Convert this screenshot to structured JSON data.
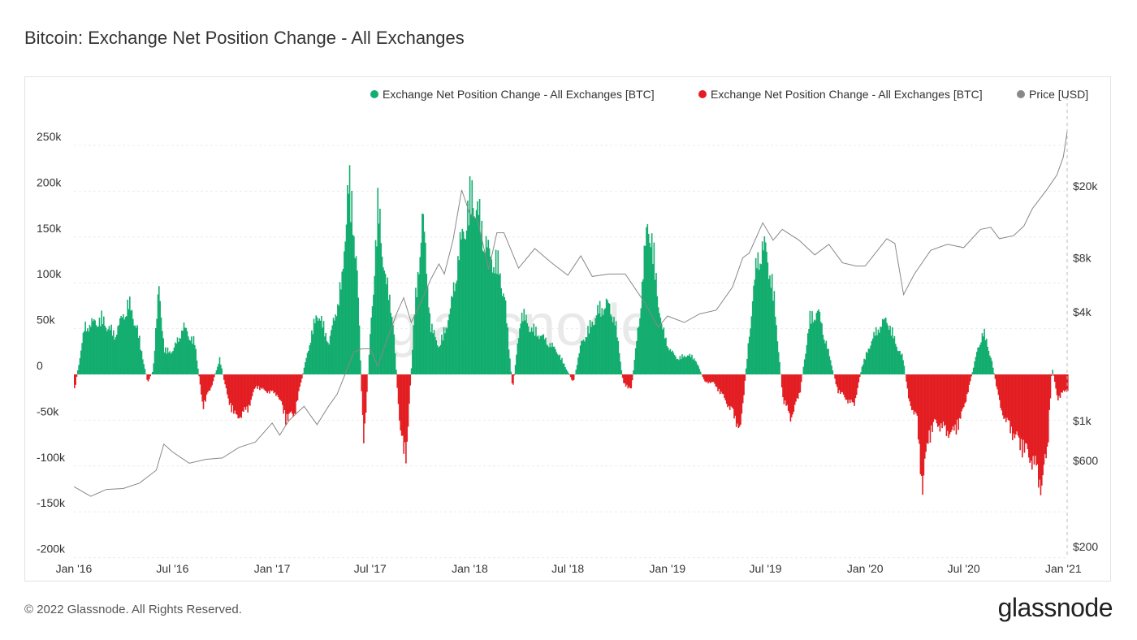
{
  "title": "Bitcoin: Exchange Net Position Change - All Exchanges",
  "footer": {
    "copyright": "© 2022 Glassnode. All Rights Reserved.",
    "logo": "glassnode"
  },
  "watermark": "glassnode",
  "colors": {
    "positive": "#13ad6f",
    "negative": "#e31e23",
    "price": "#888888",
    "grid": "#ececec"
  },
  "chart_data": {
    "type": "bar",
    "title": "Bitcoin: Exchange Net Position Change - All Exchanges",
    "legend_position": "top-right",
    "legend": [
      {
        "label": "Exchange Net Position Change - All Exchanges [BTC]",
        "color": "#13ad6f"
      },
      {
        "label": "Exchange Net Position Change - All Exchanges [BTC]",
        "color": "#e31e23"
      },
      {
        "label": "Price [USD]",
        "color": "#888888"
      }
    ],
    "x_axis": {
      "start": "2016-01-01",
      "end": "2021-01-08",
      "ticks": [
        {
          "date": "2016-01-01",
          "label": "Jan '16"
        },
        {
          "date": "2016-07-01",
          "label": "Jul '16"
        },
        {
          "date": "2017-01-01",
          "label": "Jan '17"
        },
        {
          "date": "2017-07-01",
          "label": "Jul '17"
        },
        {
          "date": "2018-01-01",
          "label": "Jan '18"
        },
        {
          "date": "2018-07-01",
          "label": "Jul '18"
        },
        {
          "date": "2019-01-01",
          "label": "Jan '19"
        },
        {
          "date": "2019-07-01",
          "label": "Jul '19"
        },
        {
          "date": "2020-01-01",
          "label": "Jan '20"
        },
        {
          "date": "2020-07-01",
          "label": "Jul '20"
        },
        {
          "date": "2021-01-01",
          "label": "Jan '21"
        }
      ]
    },
    "y_left": {
      "label": "",
      "min": -200000,
      "max": 250000,
      "scale": "linear",
      "ticks": [
        {
          "value": 250000,
          "label": "250k"
        },
        {
          "value": 200000,
          "label": "200k"
        },
        {
          "value": 150000,
          "label": "150k"
        },
        {
          "value": 100000,
          "label": "100k"
        },
        {
          "value": 50000,
          "label": "50k"
        },
        {
          "value": 0,
          "label": "0"
        },
        {
          "value": -50000,
          "label": "-50k"
        },
        {
          "value": -100000,
          "label": "-100k"
        },
        {
          "value": -150000,
          "label": "-150k"
        },
        {
          "value": -200000,
          "label": "-200k"
        }
      ]
    },
    "y_right": {
      "label": "",
      "scale": "log",
      "ticks": [
        {
          "value": 20000,
          "label": "$20k"
        },
        {
          "value": 8000,
          "label": "$8k"
        },
        {
          "value": 4000,
          "label": "$4k"
        },
        {
          "value": 1000,
          "label": "$1k"
        },
        {
          "value": 600,
          "label": "$600"
        },
        {
          "value": 200,
          "label": "$200"
        }
      ]
    },
    "grid": true,
    "net_position_change_btc": [
      [
        "2016-01-01",
        -20000
      ],
      [
        "2016-01-20",
        60000
      ],
      [
        "2016-02-20",
        70000
      ],
      [
        "2016-03-15",
        50000
      ],
      [
        "2016-04-10",
        90000
      ],
      [
        "2016-04-25",
        60000
      ],
      [
        "2016-05-15",
        -10000
      ],
      [
        "2016-05-25",
        5000
      ],
      [
        "2016-06-05",
        110000
      ],
      [
        "2016-06-15",
        30000
      ],
      [
        "2016-07-01",
        30000
      ],
      [
        "2016-07-20",
        60000
      ],
      [
        "2016-08-10",
        40000
      ],
      [
        "2016-08-25",
        -40000
      ],
      [
        "2016-09-10",
        -15000
      ],
      [
        "2016-09-25",
        20000
      ],
      [
        "2016-10-10",
        -30000
      ],
      [
        "2016-10-25",
        -55000
      ],
      [
        "2016-11-15",
        -45000
      ],
      [
        "2016-12-01",
        -15000
      ],
      [
        "2016-12-15",
        -20000
      ],
      [
        "2017-01-10",
        -25000
      ],
      [
        "2017-01-25",
        -55000
      ],
      [
        "2017-02-10",
        -50000
      ],
      [
        "2017-03-10",
        40000
      ],
      [
        "2017-03-25",
        80000
      ],
      [
        "2017-04-15",
        40000
      ],
      [
        "2017-05-10",
        120000
      ],
      [
        "2017-05-20",
        250000
      ],
      [
        "2017-06-05",
        150000
      ],
      [
        "2017-06-18",
        -95000
      ],
      [
        "2017-07-01",
        60000
      ],
      [
        "2017-07-15",
        215000
      ],
      [
        "2017-07-28",
        120000
      ],
      [
        "2017-08-10",
        80000
      ],
      [
        "2017-08-25",
        -80000
      ],
      [
        "2017-09-05",
        -100000
      ],
      [
        "2017-09-20",
        80000
      ],
      [
        "2017-10-05",
        200000
      ],
      [
        "2017-10-20",
        60000
      ],
      [
        "2017-11-05",
        35000
      ],
      [
        "2017-11-25",
        80000
      ],
      [
        "2017-12-10",
        150000
      ],
      [
        "2017-12-25",
        200000
      ],
      [
        "2018-01-05",
        230000
      ],
      [
        "2018-01-20",
        190000
      ],
      [
        "2018-02-05",
        150000
      ],
      [
        "2018-02-20",
        140000
      ],
      [
        "2018-03-05",
        100000
      ],
      [
        "2018-03-20",
        -20000
      ],
      [
        "2018-04-05",
        80000
      ],
      [
        "2018-04-20",
        60000
      ],
      [
        "2018-05-10",
        50000
      ],
      [
        "2018-05-25",
        40000
      ],
      [
        "2018-06-10",
        30000
      ],
      [
        "2018-06-25",
        10000
      ],
      [
        "2018-07-10",
        -10000
      ],
      [
        "2018-07-25",
        40000
      ],
      [
        "2018-08-10",
        60000
      ],
      [
        "2018-08-25",
        80000
      ],
      [
        "2018-09-10",
        90000
      ],
      [
        "2018-09-25",
        70000
      ],
      [
        "2018-10-10",
        -10000
      ],
      [
        "2018-10-25",
        -20000
      ],
      [
        "2018-11-10",
        80000
      ],
      [
        "2018-11-25",
        200000
      ],
      [
        "2018-12-05",
        150000
      ],
      [
        "2018-12-20",
        60000
      ],
      [
        "2019-01-05",
        30000
      ],
      [
        "2019-01-20",
        20000
      ],
      [
        "2019-02-05",
        25000
      ],
      [
        "2019-02-20",
        20000
      ],
      [
        "2019-03-10",
        -10000
      ],
      [
        "2019-03-25",
        -10000
      ],
      [
        "2019-04-15",
        -30000
      ],
      [
        "2019-05-01",
        -50000
      ],
      [
        "2019-05-15",
        -70000
      ],
      [
        "2019-06-01",
        60000
      ],
      [
        "2019-06-15",
        150000
      ],
      [
        "2019-07-01",
        160000
      ],
      [
        "2019-07-15",
        100000
      ],
      [
        "2019-08-01",
        -30000
      ],
      [
        "2019-08-15",
        -55000
      ],
      [
        "2019-09-01",
        -25000
      ],
      [
        "2019-09-20",
        70000
      ],
      [
        "2019-10-05",
        80000
      ],
      [
        "2019-10-20",
        40000
      ],
      [
        "2019-11-10",
        -20000
      ],
      [
        "2019-11-25",
        -30000
      ],
      [
        "2019-12-10",
        -40000
      ],
      [
        "2019-12-25",
        10000
      ],
      [
        "2020-01-10",
        40000
      ],
      [
        "2020-01-25",
        60000
      ],
      [
        "2020-02-10",
        70000
      ],
      [
        "2020-02-25",
        40000
      ],
      [
        "2020-03-10",
        20000
      ],
      [
        "2020-03-20",
        -30000
      ],
      [
        "2020-04-05",
        -60000
      ],
      [
        "2020-04-15",
        -145000
      ],
      [
        "2020-04-25",
        -80000
      ],
      [
        "2020-05-10",
        -60000
      ],
      [
        "2020-05-25",
        -70000
      ],
      [
        "2020-06-10",
        -75000
      ],
      [
        "2020-06-25",
        -55000
      ],
      [
        "2020-07-10",
        -15000
      ],
      [
        "2020-07-25",
        30000
      ],
      [
        "2020-08-05",
        55000
      ],
      [
        "2020-08-20",
        20000
      ],
      [
        "2020-09-05",
        -40000
      ],
      [
        "2020-09-20",
        -65000
      ],
      [
        "2020-10-05",
        -80000
      ],
      [
        "2020-10-20",
        -95000
      ],
      [
        "2020-11-05",
        -110000
      ],
      [
        "2020-11-20",
        -140000
      ],
      [
        "2020-12-01",
        -100000
      ],
      [
        "2020-12-10",
        10000
      ],
      [
        "2020-12-20",
        -30000
      ],
      [
        "2021-01-05",
        -20000
      ]
    ],
    "price_usd": [
      [
        "2016-01-01",
        430
      ],
      [
        "2016-02-01",
        380
      ],
      [
        "2016-03-01",
        415
      ],
      [
        "2016-04-01",
        420
      ],
      [
        "2016-05-01",
        450
      ],
      [
        "2016-06-01",
        530
      ],
      [
        "2016-06-15",
        740
      ],
      [
        "2016-07-01",
        670
      ],
      [
        "2016-08-01",
        580
      ],
      [
        "2016-09-01",
        610
      ],
      [
        "2016-10-01",
        620
      ],
      [
        "2016-11-01",
        710
      ],
      [
        "2016-12-01",
        760
      ],
      [
        "2017-01-01",
        970
      ],
      [
        "2017-01-15",
        830
      ],
      [
        "2017-02-01",
        1000
      ],
      [
        "2017-03-01",
        1200
      ],
      [
        "2017-03-25",
        950
      ],
      [
        "2017-04-15",
        1200
      ],
      [
        "2017-05-01",
        1400
      ],
      [
        "2017-06-01",
        2400
      ],
      [
        "2017-06-15",
        2500
      ],
      [
        "2017-07-01",
        2500
      ],
      [
        "2017-07-15",
        2000
      ],
      [
        "2017-08-01",
        2800
      ],
      [
        "2017-08-20",
        4000
      ],
      [
        "2017-09-01",
        4800
      ],
      [
        "2017-09-15",
        3500
      ],
      [
        "2017-10-01",
        4400
      ],
      [
        "2017-10-20",
        6000
      ],
      [
        "2017-11-05",
        7400
      ],
      [
        "2017-11-15",
        6500
      ],
      [
        "2017-12-01",
        10000
      ],
      [
        "2017-12-17",
        19000
      ],
      [
        "2018-01-01",
        14000
      ],
      [
        "2018-01-15",
        13000
      ],
      [
        "2018-02-05",
        6900
      ],
      [
        "2018-02-20",
        11000
      ],
      [
        "2018-03-05",
        11000
      ],
      [
        "2018-04-01",
        7000
      ],
      [
        "2018-05-01",
        9000
      ],
      [
        "2018-06-01",
        7500
      ],
      [
        "2018-07-01",
        6400
      ],
      [
        "2018-07-25",
        8200
      ],
      [
        "2018-08-15",
        6300
      ],
      [
        "2018-09-15",
        6500
      ],
      [
        "2018-10-15",
        6500
      ],
      [
        "2018-11-20",
        4500
      ],
      [
        "2018-12-15",
        3300
      ],
      [
        "2019-01-01",
        3800
      ],
      [
        "2019-02-01",
        3500
      ],
      [
        "2019-03-01",
        3900
      ],
      [
        "2019-04-01",
        4100
      ],
      [
        "2019-05-01",
        5500
      ],
      [
        "2019-05-20",
        8000
      ],
      [
        "2019-06-01",
        8500
      ],
      [
        "2019-06-26",
        12500
      ],
      [
        "2019-07-15",
        10000
      ],
      [
        "2019-08-01",
        11500
      ],
      [
        "2019-09-01",
        10000
      ],
      [
        "2019-09-30",
        8300
      ],
      [
        "2019-10-26",
        9500
      ],
      [
        "2019-11-20",
        7500
      ],
      [
        "2019-12-15",
        7200
      ],
      [
        "2020-01-01",
        7200
      ],
      [
        "2020-02-10",
        10200
      ],
      [
        "2020-02-25",
        9600
      ],
      [
        "2020-03-12",
        5000
      ],
      [
        "2020-04-01",
        6500
      ],
      [
        "2020-05-01",
        8800
      ],
      [
        "2020-06-01",
        9500
      ],
      [
        "2020-07-01",
        9100
      ],
      [
        "2020-08-01",
        11500
      ],
      [
        "2020-08-20",
        11800
      ],
      [
        "2020-09-05",
        10200
      ],
      [
        "2020-10-01",
        10600
      ],
      [
        "2020-10-20",
        12000
      ],
      [
        "2020-11-05",
        15000
      ],
      [
        "2020-12-01",
        19000
      ],
      [
        "2020-12-20",
        23000
      ],
      [
        "2021-01-01",
        29000
      ],
      [
        "2021-01-08",
        40000
      ]
    ]
  }
}
